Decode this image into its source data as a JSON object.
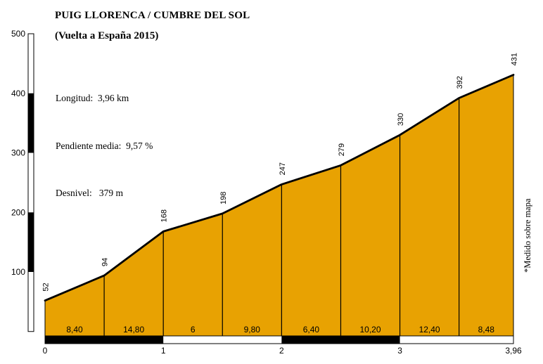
{
  "header": {
    "title": "PUIG LLORENCA / CUMBRE DEL SOL",
    "subtitle": "(Vuelta a España 2015)",
    "stats": {
      "longitud": "Longitud:  3,96 km",
      "pendiente": "Pendiente media:  9,57 %",
      "desnivel": "Desnivel:   379 m"
    }
  },
  "note": {
    "text": "*Medido sobre mapa"
  },
  "chart_data": {
    "type": "area",
    "title": "PUIG LLORENCA / CUMBRE DEL SOL",
    "subtitle": "(Vuelta a España 2015)",
    "x_unit": "km",
    "y_unit": "m",
    "xlim": [
      0,
      3.96
    ],
    "ylim": [
      0,
      500
    ],
    "grid": false,
    "length_km": 3.96,
    "avg_grade_pct": 9.57,
    "elevation_gain_m": 379,
    "points": [
      {
        "km": 0,
        "elev_m": 52,
        "label": "52"
      },
      {
        "km": 0.5,
        "elev_m": 94,
        "label": "94"
      },
      {
        "km": 1,
        "elev_m": 168,
        "label": "168"
      },
      {
        "km": 1.5,
        "elev_m": 198,
        "label": "198"
      },
      {
        "km": 2,
        "elev_m": 247,
        "label": "247"
      },
      {
        "km": 2.5,
        "elev_m": 279,
        "label": "279"
      },
      {
        "km": 3,
        "elev_m": 330,
        "label": "330"
      },
      {
        "km": 3.5,
        "elev_m": 392,
        "label": "392"
      },
      {
        "km": 3.96,
        "elev_m": 431,
        "label": "431"
      }
    ],
    "segments": [
      {
        "from_km": 0,
        "to_km": 0.5,
        "grade_pct": 8.4,
        "label": "8,40"
      },
      {
        "from_km": 0.5,
        "to_km": 1,
        "grade_pct": 14.8,
        "label": "14,80"
      },
      {
        "from_km": 1,
        "to_km": 1.5,
        "grade_pct": 6,
        "label": "6"
      },
      {
        "from_km": 1.5,
        "to_km": 2,
        "grade_pct": 9.8,
        "label": "9,80"
      },
      {
        "from_km": 2,
        "to_km": 2.5,
        "grade_pct": 6.4,
        "label": "6,40"
      },
      {
        "from_km": 2.5,
        "to_km": 3,
        "grade_pct": 10.2,
        "label": "10,20"
      },
      {
        "from_km": 3,
        "to_km": 3.5,
        "grade_pct": 12.4,
        "label": "12,40"
      },
      {
        "from_km": 3.5,
        "to_km": 3.96,
        "grade_pct": 8.48,
        "label": "8,48"
      }
    ],
    "x_ticks": [
      {
        "km": 0,
        "label": "0"
      },
      {
        "km": 1,
        "label": "1"
      },
      {
        "km": 2,
        "label": "2"
      },
      {
        "km": 3,
        "label": "3"
      },
      {
        "km": 3.96,
        "label": "3,96"
      }
    ],
    "y_ticks": [
      {
        "m": 100,
        "label": "100"
      },
      {
        "m": 200,
        "label": "200"
      },
      {
        "m": 300,
        "label": "300"
      },
      {
        "m": 400,
        "label": "400"
      },
      {
        "m": 500,
        "label": "500"
      }
    ],
    "colors": {
      "profile_fill": "#E8A202",
      "line": "#000000",
      "background": "#FFFFFF"
    }
  }
}
